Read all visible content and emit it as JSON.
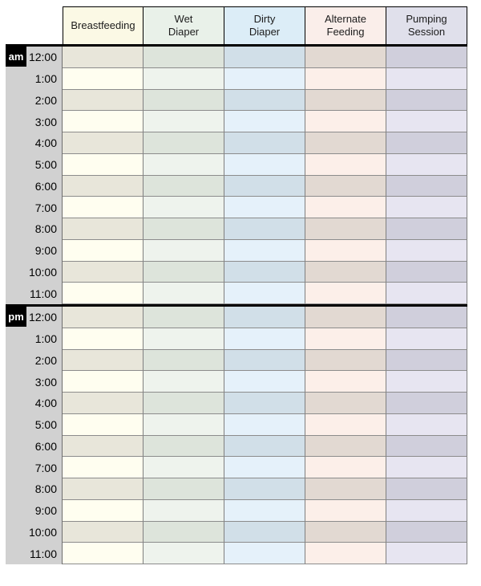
{
  "chart": {
    "columns": [
      {
        "id": "breastfeeding",
        "label": "Breastfeeding",
        "header_bg": "#fbf9e5",
        "row_light": "#fffef0",
        "row_dark": "#e8e6da"
      },
      {
        "id": "wet-diaper",
        "label": "Wet\nDiaper",
        "header_bg": "#e9f1e9",
        "row_light": "#eef3ed",
        "row_dark": "#dde4db"
      },
      {
        "id": "dirty-diaper",
        "label": "Dirty\nDiaper",
        "header_bg": "#dcedf7",
        "row_light": "#e5f1fa",
        "row_dark": "#d1dfe8"
      },
      {
        "id": "alternate-feeding",
        "label": "Alternate\nFeeding",
        "header_bg": "#faeeea",
        "row_light": "#fcefe9",
        "row_dark": "#e2d9d2"
      },
      {
        "id": "pumping-session",
        "label": "Pumping\nSession",
        "header_bg": "#e0e0eb",
        "row_light": "#e7e5f1",
        "row_dark": "#d0cfdc"
      }
    ],
    "sections": [
      {
        "period": "am",
        "times": [
          "12:00",
          "1:00",
          "2:00",
          "3:00",
          "4:00",
          "5:00",
          "6:00",
          "7:00",
          "8:00",
          "9:00",
          "10:00",
          "11:00"
        ]
      },
      {
        "period": "pm",
        "times": [
          "12:00",
          "1:00",
          "2:00",
          "3:00",
          "4:00",
          "5:00",
          "6:00",
          "7:00",
          "8:00",
          "9:00",
          "10:00",
          "11:00"
        ]
      }
    ],
    "colors": {
      "time_band": "#d1d1d1",
      "badge_bg": "#000000",
      "badge_text": "#ffffff",
      "header_border": "#000000",
      "body_border": "#7f7f7f",
      "divider": "#000000",
      "header_text": "#1c1c1c",
      "time_text": "#000000",
      "page_bg": "#ffffff"
    }
  }
}
